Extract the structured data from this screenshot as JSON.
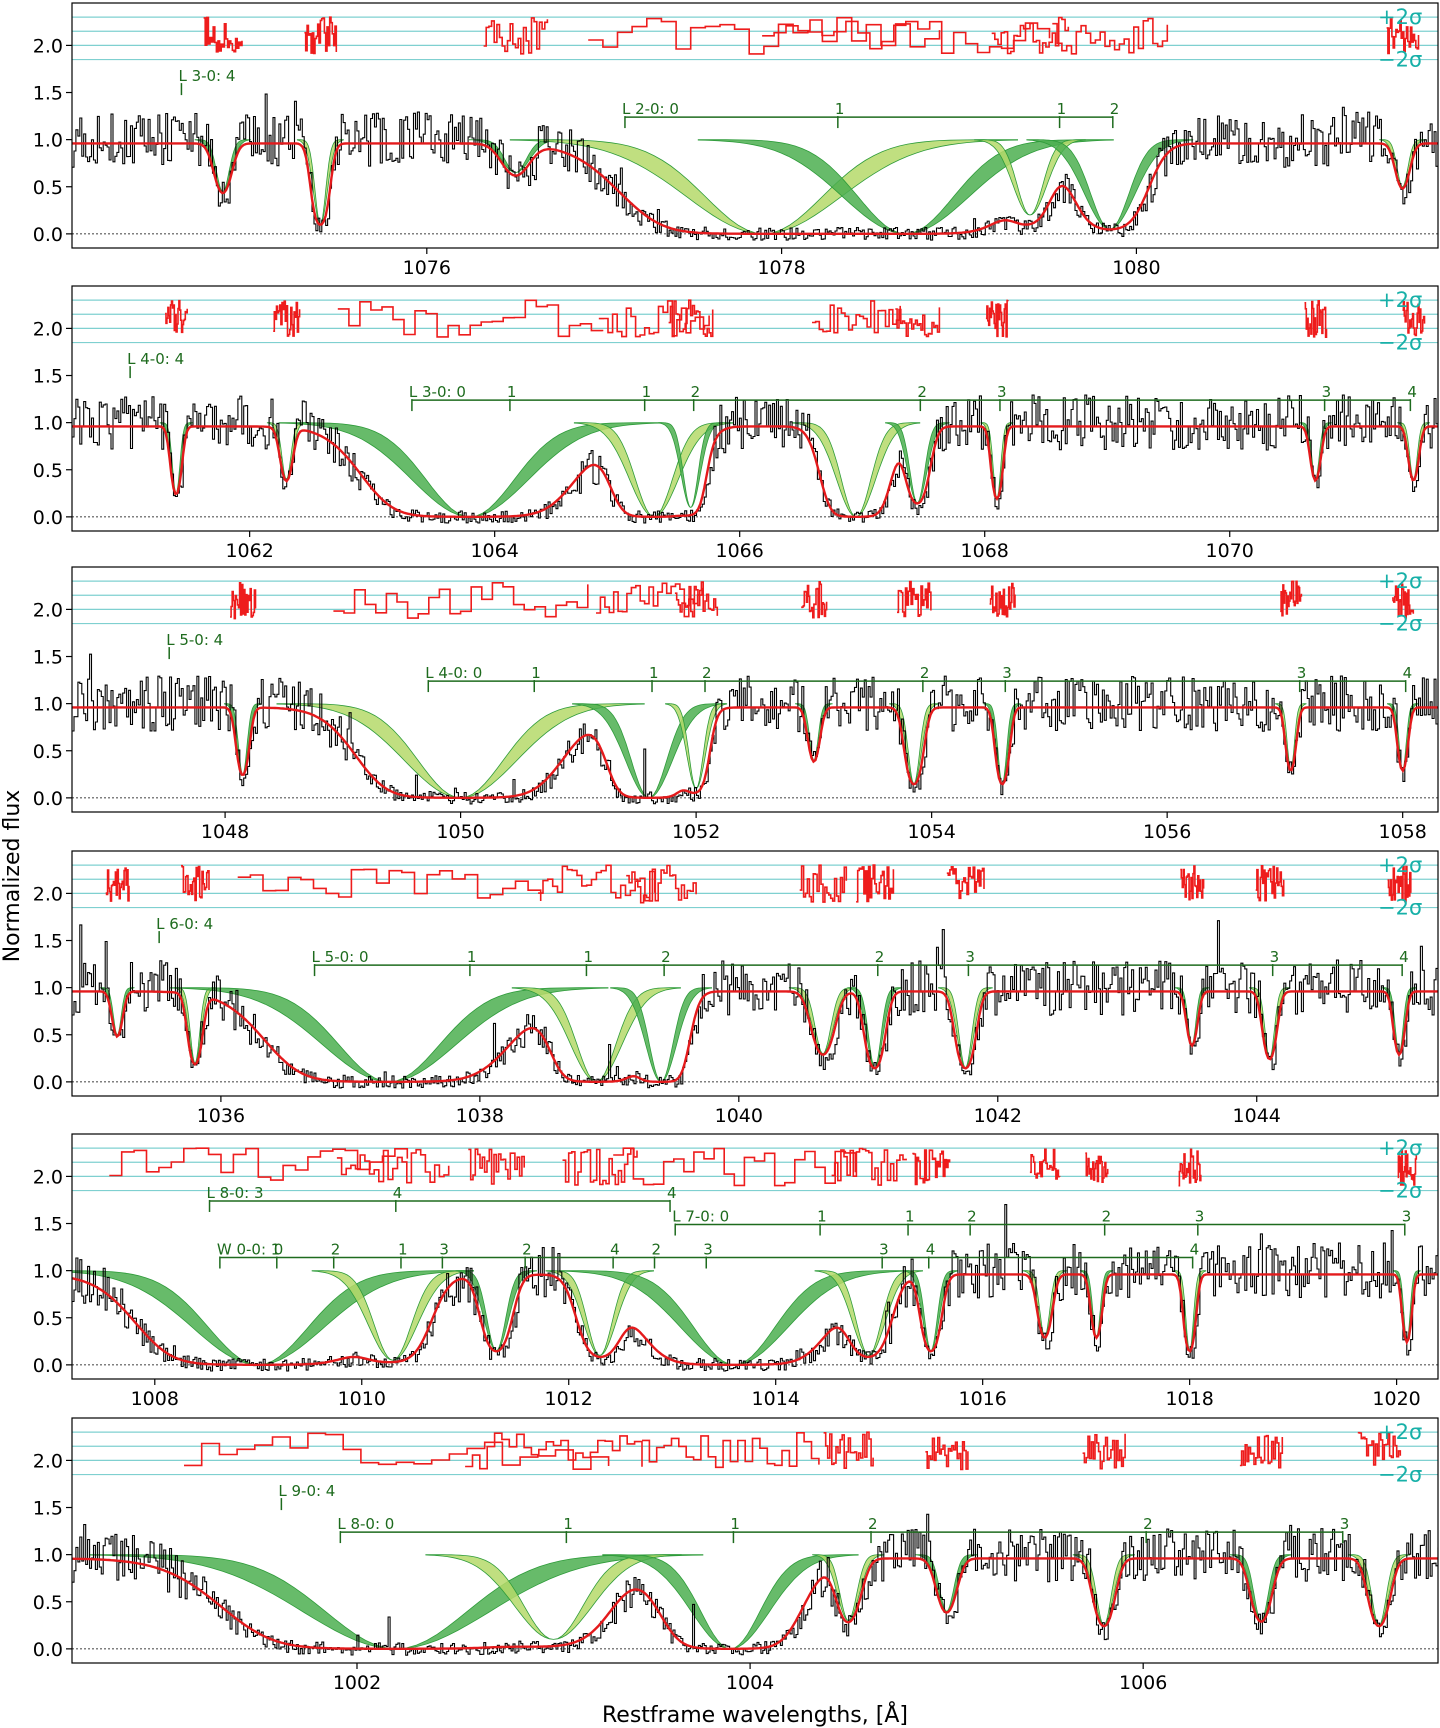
{
  "figure": {
    "ylabel": "Normalized flux",
    "xlabel": "Restframe wavelengths, [Å]",
    "sigma_labels": {
      "plus": "+2σ",
      "minus": "−2σ"
    }
  },
  "colors": {
    "data": "#000000",
    "model_total": "#e41a1c",
    "residuals": "#ee1c1c",
    "component_dark": "#2e9b3a",
    "component_light": "#9acd32",
    "component_fill_dark": "#4caf50",
    "component_fill_light": "#b5d96a",
    "other_absorber": "#a0a0a0",
    "line_markers": "#1e6b1e",
    "sigma_lines": "#7fd0d0",
    "sigma_text": "#17b0a8"
  },
  "chart_data": [
    {
      "type": "line",
      "panel": 1,
      "xlim": [
        1074.0,
        1081.7
      ],
      "ylim": [
        -0.15,
        2.45
      ],
      "xticks": [
        1076,
        1078,
        1080
      ],
      "yticks": [
        0.0,
        0.5,
        1.0,
        1.5,
        2.0
      ],
      "series": [
        {
          "x_start": 1074.0,
          "x_end": 1081.7,
          "continuum": 1.0,
          "lines": [
            {
              "center": 1074.85,
              "depth": 0.55,
              "width": 0.06
            },
            {
              "center": 1075.4,
              "depth": 0.9,
              "width": 0.05
            },
            {
              "center": 1076.5,
              "depth": 0.35,
              "width": 0.1
            },
            {
              "center": 1077.9,
              "depth": 1.0,
              "width": 0.55
            },
            {
              "center": 1078.7,
              "depth": 1.0,
              "width": 0.45
            },
            {
              "center": 1079.4,
              "depth": 0.8,
              "width": 0.12
            },
            {
              "center": 1079.85,
              "depth": 0.95,
              "width": 0.18
            },
            {
              "center": 1081.5,
              "depth": 0.5,
              "width": 0.05
            }
          ]
        }
      ],
      "markers": [
        {
          "label": "L 3-0: 4",
          "x": 1074.6,
          "y": 1.6
        },
        {
          "label": "L 2-0: 0",
          "x": 1077.1,
          "y": 1.25
        },
        {
          "label": "1",
          "x": 1078.3,
          "y": 1.25
        },
        {
          "label": "1",
          "x": 1079.55,
          "y": 1.25
        },
        {
          "label": "2",
          "x": 1079.85,
          "y": 1.25
        }
      ]
    },
    {
      "type": "line",
      "panel": 2,
      "xlim": [
        1060.55,
        1071.7
      ],
      "ylim": [
        -0.15,
        2.45
      ],
      "xticks": [
        1062,
        1064,
        1066,
        1068,
        1070
      ],
      "yticks": [
        0.0,
        0.5,
        1.0,
        1.5,
        2.0
      ],
      "series": [
        {
          "x_start": 1060.55,
          "x_end": 1071.7,
          "continuum": 1.0,
          "lines": [
            {
              "center": 1061.4,
              "depth": 0.75,
              "width": 0.05
            },
            {
              "center": 1062.3,
              "depth": 0.6,
              "width": 0.06
            },
            {
              "center": 1063.8,
              "depth": 1.0,
              "width": 0.6
            },
            {
              "center": 1065.3,
              "depth": 1.0,
              "width": 0.25
            },
            {
              "center": 1065.6,
              "depth": 0.9,
              "width": 0.1
            },
            {
              "center": 1066.95,
              "depth": 1.0,
              "width": 0.2
            },
            {
              "center": 1067.45,
              "depth": 0.85,
              "width": 0.1
            },
            {
              "center": 1068.1,
              "depth": 0.8,
              "width": 0.05
            },
            {
              "center": 1070.7,
              "depth": 0.6,
              "width": 0.05
            },
            {
              "center": 1071.5,
              "depth": 0.6,
              "width": 0.05
            }
          ]
        }
      ],
      "markers": [
        {
          "label": "L 4-0: 4",
          "x": 1061.0,
          "y": 1.6
        },
        {
          "label": "L 3-0: 0",
          "x": 1063.3,
          "y": 1.25
        },
        {
          "label": "1",
          "x": 1064.1,
          "y": 1.25
        },
        {
          "label": "1",
          "x": 1065.2,
          "y": 1.25
        },
        {
          "label": "2",
          "x": 1065.6,
          "y": 1.25
        },
        {
          "label": "2",
          "x": 1067.45,
          "y": 1.25
        },
        {
          "label": "3",
          "x": 1068.1,
          "y": 1.25
        },
        {
          "label": "3",
          "x": 1070.75,
          "y": 1.25
        },
        {
          "label": "4",
          "x": 1071.45,
          "y": 1.25
        }
      ]
    },
    {
      "type": "line",
      "panel": 3,
      "xlim": [
        1046.7,
        1058.3
      ],
      "ylim": [
        -0.15,
        2.45
      ],
      "xticks": [
        1048,
        1050,
        1052,
        1054,
        1056,
        1058
      ],
      "yticks": [
        0.0,
        0.5,
        1.0,
        1.5,
        2.0
      ],
      "series": [
        {
          "x_start": 1046.7,
          "x_end": 1058.3,
          "continuum": 1.0,
          "lines": [
            {
              "center": 1048.15,
              "depth": 0.75,
              "width": 0.06
            },
            {
              "center": 1050.0,
              "depth": 1.0,
              "width": 0.6
            },
            {
              "center": 1051.6,
              "depth": 1.0,
              "width": 0.25
            },
            {
              "center": 1052.0,
              "depth": 0.9,
              "width": 0.1
            },
            {
              "center": 1053.0,
              "depth": 0.6,
              "width": 0.06
            },
            {
              "center": 1053.85,
              "depth": 0.85,
              "width": 0.08
            },
            {
              "center": 1054.6,
              "depth": 0.85,
              "width": 0.06
            },
            {
              "center": 1057.05,
              "depth": 0.7,
              "width": 0.05
            },
            {
              "center": 1058.0,
              "depth": 0.7,
              "width": 0.05
            }
          ]
        }
      ],
      "markers": [
        {
          "label": "L 5-0: 4",
          "x": 1047.5,
          "y": 1.6
        },
        {
          "label": "L 4-0: 0",
          "x": 1049.7,
          "y": 1.25
        },
        {
          "label": "1",
          "x": 1050.6,
          "y": 1.25
        },
        {
          "label": "1",
          "x": 1051.6,
          "y": 1.25
        },
        {
          "label": "2",
          "x": 1052.05,
          "y": 1.25
        },
        {
          "label": "2",
          "x": 1053.9,
          "y": 1.25
        },
        {
          "label": "3",
          "x": 1054.6,
          "y": 1.25
        },
        {
          "label": "3",
          "x": 1057.1,
          "y": 1.25
        },
        {
          "label": "4",
          "x": 1058.0,
          "y": 1.25
        }
      ]
    },
    {
      "type": "line",
      "panel": 4,
      "xlim": [
        1034.85,
        1045.4
      ],
      "ylim": [
        -0.15,
        2.45
      ],
      "xticks": [
        1036,
        1038,
        1040,
        1042,
        1044
      ],
      "yticks": [
        0.0,
        0.5,
        1.0,
        1.5,
        2.0
      ],
      "series": [
        {
          "x_start": 1034.85,
          "x_end": 1045.4,
          "continuum": 1.0,
          "lines": [
            {
              "center": 1035.2,
              "depth": 0.5,
              "width": 0.05
            },
            {
              "center": 1035.8,
              "depth": 0.8,
              "width": 0.06
            },
            {
              "center": 1037.3,
              "depth": 1.0,
              "width": 0.65
            },
            {
              "center": 1038.9,
              "depth": 1.0,
              "width": 0.25
            },
            {
              "center": 1039.4,
              "depth": 1.0,
              "width": 0.15
            },
            {
              "center": 1040.65,
              "depth": 0.7,
              "width": 0.1
            },
            {
              "center": 1041.05,
              "depth": 0.85,
              "width": 0.08
            },
            {
              "center": 1041.75,
              "depth": 0.85,
              "width": 0.08
            },
            {
              "center": 1043.5,
              "depth": 0.6,
              "width": 0.05
            },
            {
              "center": 1044.1,
              "depth": 0.75,
              "width": 0.06
            },
            {
              "center": 1045.1,
              "depth": 0.7,
              "width": 0.05
            }
          ]
        }
      ],
      "markers": [
        {
          "label": "L 6-0: 4",
          "x": 1035.5,
          "y": 1.6
        },
        {
          "label": "L 5-0: 0",
          "x": 1036.7,
          "y": 1.25
        },
        {
          "label": "1",
          "x": 1037.9,
          "y": 1.25
        },
        {
          "label": "1",
          "x": 1038.8,
          "y": 1.25
        },
        {
          "label": "2",
          "x": 1039.4,
          "y": 1.25
        },
        {
          "label": "2",
          "x": 1041.05,
          "y": 1.25
        },
        {
          "label": "3",
          "x": 1041.75,
          "y": 1.25
        },
        {
          "label": "3",
          "x": 1044.1,
          "y": 1.25
        },
        {
          "label": "4",
          "x": 1045.1,
          "y": 1.25
        }
      ]
    },
    {
      "type": "line",
      "panel": 5,
      "xlim": [
        1007.2,
        1020.4
      ],
      "ylim": [
        -0.15,
        2.45
      ],
      "xticks": [
        1008,
        1010,
        1012,
        1014,
        1016,
        1018,
        1020
      ],
      "yticks": [
        0.0,
        0.5,
        1.0,
        1.5,
        2.0
      ],
      "series": [
        {
          "x_start": 1007.2,
          "x_end": 1020.4,
          "continuum": 1.0,
          "lines": [
            {
              "center": 1009.0,
              "depth": 1.0,
              "width": 0.8
            },
            {
              "center": 1010.3,
              "depth": 0.95,
              "width": 0.3
            },
            {
              "center": 1011.3,
              "depth": 0.85,
              "width": 0.15
            },
            {
              "center": 1012.3,
              "depth": 0.9,
              "width": 0.2
            },
            {
              "center": 1013.6,
              "depth": 1.0,
              "width": 0.65
            },
            {
              "center": 1014.9,
              "depth": 0.9,
              "width": 0.2
            },
            {
              "center": 1015.5,
              "depth": 0.85,
              "width": 0.1
            },
            {
              "center": 1016.6,
              "depth": 0.7,
              "width": 0.08
            },
            {
              "center": 1017.1,
              "depth": 0.7,
              "width": 0.06
            },
            {
              "center": 1018.0,
              "depth": 0.85,
              "width": 0.06
            },
            {
              "center": 1020.1,
              "depth": 0.75,
              "width": 0.05
            }
          ]
        }
      ],
      "markers": [
        {
          "label": "L 8-0: 3",
          "x": 1008.5,
          "y": 1.75
        },
        {
          "label": "4",
          "x": 1010.3,
          "y": 1.75
        },
        {
          "label": "4",
          "x": 1012.95,
          "y": 1.75
        },
        {
          "label": "L 7-0: 0",
          "x": 1013.0,
          "y": 1.5
        },
        {
          "label": "1",
          "x": 1014.4,
          "y": 1.5
        },
        {
          "label": "1",
          "x": 1015.25,
          "y": 1.5
        },
        {
          "label": "2",
          "x": 1015.85,
          "y": 1.5
        },
        {
          "label": "2",
          "x": 1017.15,
          "y": 1.5
        },
        {
          "label": "3",
          "x": 1018.05,
          "y": 1.5
        },
        {
          "label": "3",
          "x": 1020.05,
          "y": 1.5
        },
        {
          "label": "W 0-0: 1",
          "x": 1008.6,
          "y": 1.15
        },
        {
          "label": "0",
          "x": 1009.15,
          "y": 1.15
        },
        {
          "label": "2",
          "x": 1009.7,
          "y": 1.15
        },
        {
          "label": "1",
          "x": 1010.35,
          "y": 1.15
        },
        {
          "label": "3",
          "x": 1010.75,
          "y": 1.15
        },
        {
          "label": "2",
          "x": 1011.55,
          "y": 1.15
        },
        {
          "label": "4",
          "x": 1012.4,
          "y": 1.15
        },
        {
          "label": "2",
          "x": 1012.8,
          "y": 1.15
        },
        {
          "label": "3",
          "x": 1013.3,
          "y": 1.15
        },
        {
          "label": "3",
          "x": 1015.0,
          "y": 1.15
        },
        {
          "label": "4",
          "x": 1015.45,
          "y": 1.15
        },
        {
          "label": "4",
          "x": 1018.0,
          "y": 1.15
        }
      ]
    },
    {
      "type": "line",
      "panel": 6,
      "xlim": [
        1000.55,
        1007.5
      ],
      "ylim": [
        -0.15,
        2.45
      ],
      "xticks": [
        1002,
        1004,
        1006
      ],
      "yticks": [
        0.0,
        0.5,
        1.0,
        1.5,
        2.0
      ],
      "series": [
        {
          "x_start": 1000.55,
          "x_end": 1007.5,
          "continuum": 1.0,
          "lines": [
            {
              "center": 1002.2,
              "depth": 1.0,
              "width": 0.6
            },
            {
              "center": 1003.0,
              "depth": 0.9,
              "width": 0.25
            },
            {
              "center": 1003.9,
              "depth": 1.0,
              "width": 0.25
            },
            {
              "center": 1004.5,
              "depth": 0.7,
              "width": 0.07
            },
            {
              "center": 1005.0,
              "depth": 0.6,
              "width": 0.06
            },
            {
              "center": 1005.8,
              "depth": 0.75,
              "width": 0.06
            },
            {
              "center": 1006.6,
              "depth": 0.7,
              "width": 0.06
            },
            {
              "center": 1007.2,
              "depth": 0.75,
              "width": 0.06
            }
          ]
        }
      ],
      "markers": [
        {
          "label": "L 9-0: 4",
          "x": 1001.6,
          "y": 1.6
        },
        {
          "label": "L 8-0: 0",
          "x": 1001.9,
          "y": 1.25
        },
        {
          "label": "1",
          "x": 1003.05,
          "y": 1.25
        },
        {
          "label": "1",
          "x": 1003.9,
          "y": 1.25
        },
        {
          "label": "2",
          "x": 1004.6,
          "y": 1.25
        },
        {
          "label": "2",
          "x": 1006.0,
          "y": 1.25
        },
        {
          "label": "3",
          "x": 1007.0,
          "y": 1.25
        }
      ]
    }
  ]
}
